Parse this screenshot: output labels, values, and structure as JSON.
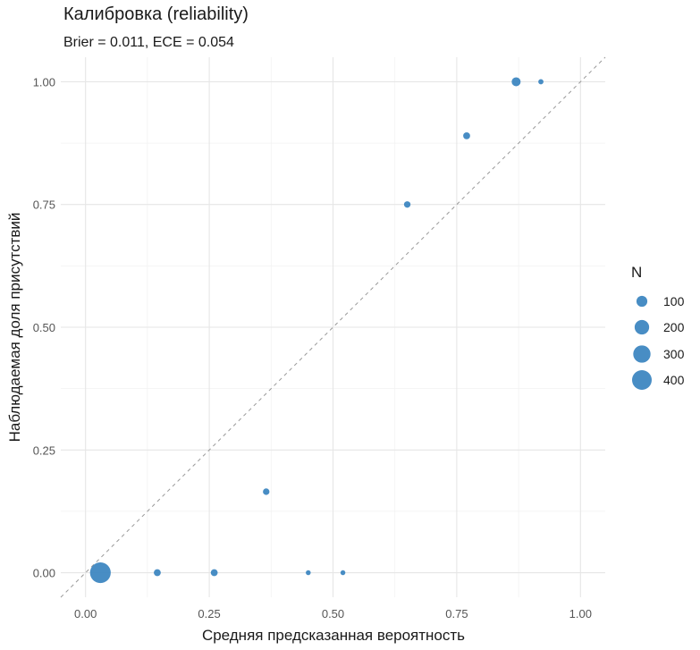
{
  "chart_data": {
    "type": "scatter",
    "title": "Калибровка (reliability)",
    "subtitle": "Brier = 0.011, ECE = 0.054",
    "xlabel": "Средняя предсказанная вероятность",
    "ylabel": "Наблюдаемая доля присутствий",
    "xlim": [
      -0.05,
      1.05
    ],
    "ylim": [
      -0.05,
      1.05
    ],
    "x_ticks": [
      "0.00",
      "0.25",
      "0.50",
      "0.75",
      "1.00"
    ],
    "y_ticks": [
      "0.00",
      "0.25",
      "0.50",
      "0.75",
      "1.00"
    ],
    "grid": true,
    "reference_line": "y = x",
    "point_color": "#3a84bf",
    "reference_line_color": "#999999",
    "size_legend": {
      "title": "N",
      "placement": "right",
      "entries": [
        {
          "label": "100",
          "value": 100
        },
        {
          "label": "200",
          "value": 200
        },
        {
          "label": "300",
          "value": 300
        },
        {
          "label": "400",
          "value": 400
        }
      ]
    },
    "points": [
      {
        "x": 0.03,
        "y": 0.0,
        "n": 450
      },
      {
        "x": 0.145,
        "y": 0.0,
        "n": 30
      },
      {
        "x": 0.26,
        "y": 0.0,
        "n": 30
      },
      {
        "x": 0.365,
        "y": 0.165,
        "n": 25
      },
      {
        "x": 0.45,
        "y": 0.0,
        "n": 10
      },
      {
        "x": 0.52,
        "y": 0.0,
        "n": 10
      },
      {
        "x": 0.65,
        "y": 0.75,
        "n": 25
      },
      {
        "x": 0.77,
        "y": 0.89,
        "n": 30
      },
      {
        "x": 0.87,
        "y": 1.0,
        "n": 60
      },
      {
        "x": 0.92,
        "y": 1.0,
        "n": 12
      }
    ]
  }
}
